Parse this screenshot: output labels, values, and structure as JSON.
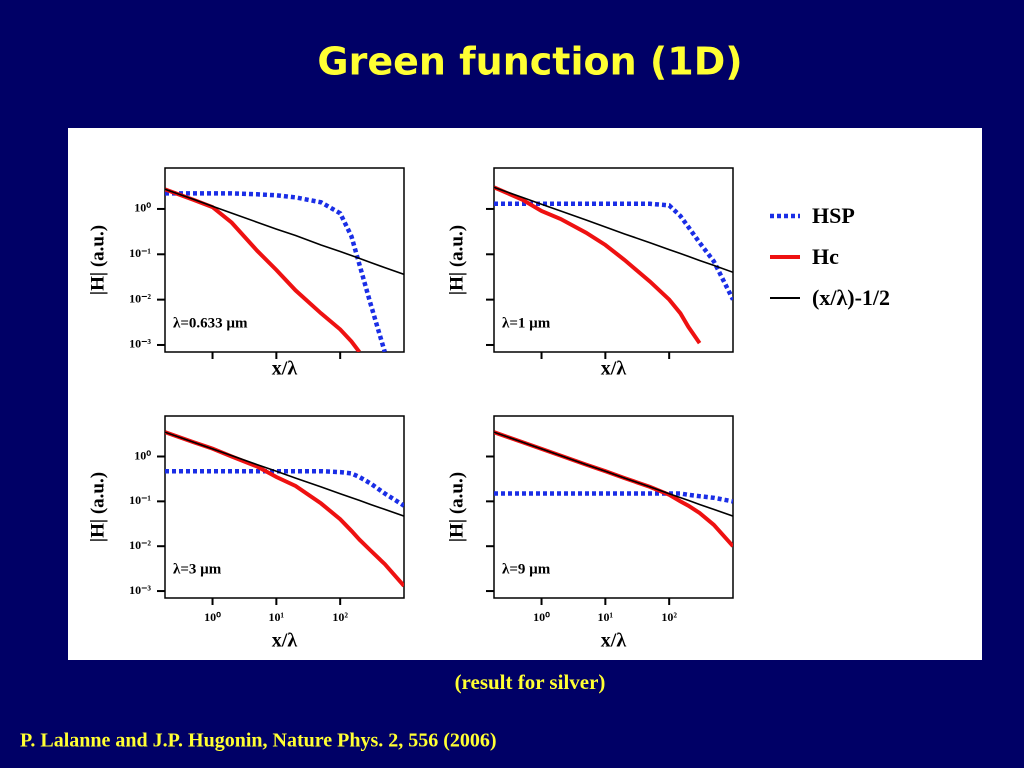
{
  "title": "Green function (1D)",
  "caption": "(result for silver)",
  "reference": "P. Lalanne and J.P. Hugonin, Nature Phys. 2, 556 (2006)",
  "chart_data": [
    {
      "type": "line",
      "annotation": "λ=0.633 µm",
      "xlabel": "x/λ",
      "ylabel": "|H| (a.u.)",
      "log_x": true,
      "log_y": true,
      "legend": "right",
      "xlim": [
        0.18,
        1000
      ],
      "ylim": [
        0.0007,
        8
      ],
      "xticks": [
        1,
        10,
        100
      ],
      "xtick_labels": false,
      "yticks": [
        {
          "value": 1,
          "label": "10⁰"
        },
        {
          "value": 0.1,
          "label": "10⁻¹"
        },
        {
          "value": 0.01,
          "label": "10⁻²"
        },
        {
          "value": 0.001,
          "label": "10⁻³"
        }
      ],
      "ytick_labels": true,
      "x": [
        0.18,
        0.5,
        1,
        2,
        5,
        10,
        20,
        50,
        100,
        150,
        200,
        300,
        500,
        1000
      ],
      "series": [
        {
          "name": "HSP",
          "color": "#1a2ee6",
          "style": "dotted",
          "values": [
            2.2,
            2.2,
            2.2,
            2.2,
            2.1,
            2.0,
            1.8,
            1.4,
            0.8,
            0.25,
            0.06,
            0.008,
            0.0007,
            null
          ]
        },
        {
          "name": "Hc",
          "color": "#ee1111",
          "style": "solid",
          "values": [
            2.7,
            1.6,
            1.1,
            0.5,
            0.12,
            0.045,
            0.016,
            0.005,
            0.0022,
            0.0012,
            0.0007,
            null,
            null,
            null
          ]
        },
        {
          "name": "(x/λ)-1/2",
          "color": "#000000",
          "style": "thin",
          "values": [
            2.71,
            1.63,
            1.15,
            0.81,
            0.51,
            0.36,
            0.26,
            0.16,
            0.115,
            0.094,
            0.081,
            0.066,
            0.051,
            0.036
          ]
        }
      ]
    },
    {
      "type": "line",
      "annotation": "λ=1 µm",
      "ylabel": "|H| (a.u.)",
      "xlabel": "x/λ",
      "log_x": true,
      "log_y": true,
      "xlim": [
        0.18,
        1000
      ],
      "ylim": [
        0.0007,
        8
      ],
      "xticks": [
        1,
        10,
        100
      ],
      "xtick_labels": false,
      "yticks": [
        1,
        0.1,
        0.01,
        0.001
      ],
      "ytick_labels": false,
      "x": [
        0.18,
        0.5,
        1,
        2,
        5,
        10,
        20,
        50,
        100,
        150,
        200,
        300,
        500,
        1000
      ],
      "series": [
        {
          "color": "#1a2ee6",
          "style": "dotted",
          "values": [
            1.3,
            1.3,
            1.3,
            1.3,
            1.3,
            1.3,
            1.3,
            1.3,
            1.2,
            0.7,
            0.4,
            0.18,
            0.07,
            0.01
          ]
        },
        {
          "color": "#ee1111",
          "style": "solid",
          "values": [
            3.0,
            1.6,
            0.9,
            0.6,
            0.3,
            0.16,
            0.075,
            0.025,
            0.01,
            0.005,
            0.0025,
            0.0011,
            null,
            null
          ]
        },
        {
          "color": "#000000",
          "style": "thin",
          "values": [
            2.99,
            1.8,
            1.27,
            0.9,
            0.57,
            0.4,
            0.28,
            0.18,
            0.127,
            0.104,
            0.09,
            0.073,
            0.057,
            0.04
          ]
        }
      ]
    },
    {
      "type": "line",
      "annotation": "λ=3 µm",
      "ylabel": "|H| (a.u.)",
      "xlabel": "x/λ",
      "log_x": true,
      "log_y": true,
      "xlim": [
        0.18,
        1000
      ],
      "ylim": [
        0.0007,
        8
      ],
      "xticks": [
        {
          "value": 1,
          "label": "10⁰"
        },
        {
          "value": 10,
          "label": "10¹"
        },
        {
          "value": 100,
          "label": "10²"
        }
      ],
      "xtick_labels": true,
      "yticks": [
        {
          "value": 1,
          "label": "10⁰"
        },
        {
          "value": 0.1,
          "label": "10⁻¹"
        },
        {
          "value": 0.01,
          "label": "10⁻²"
        },
        {
          "value": 0.001,
          "label": "10⁻³"
        }
      ],
      "ytick_labels": true,
      "x": [
        0.18,
        0.5,
        1,
        2,
        5,
        10,
        20,
        50,
        100,
        150,
        200,
        300,
        500,
        1000
      ],
      "series": [
        {
          "color": "#1a2ee6",
          "style": "dotted",
          "values": [
            0.47,
            0.47,
            0.47,
            0.47,
            0.47,
            0.47,
            0.47,
            0.47,
            0.45,
            0.42,
            0.35,
            0.25,
            0.15,
            0.08
          ]
        },
        {
          "color": "#ee1111",
          "style": "solid",
          "values": [
            3.5,
            2.1,
            1.5,
            1.0,
            0.6,
            0.35,
            0.22,
            0.09,
            0.04,
            0.022,
            0.014,
            0.008,
            0.004,
            0.0013
          ]
        },
        {
          "color": "#000000",
          "style": "thin",
          "values": [
            3.49,
            2.09,
            1.48,
            1.05,
            0.66,
            0.47,
            0.33,
            0.21,
            0.148,
            0.121,
            0.105,
            0.085,
            0.066,
            0.047
          ]
        }
      ]
    },
    {
      "type": "line",
      "annotation": "λ=9 µm",
      "ylabel": "|H| (a.u.)",
      "xlabel": "x/λ",
      "log_x": true,
      "log_y": true,
      "xlim": [
        0.18,
        1000
      ],
      "ylim": [
        0.0007,
        8
      ],
      "xticks": [
        {
          "value": 1,
          "label": "10⁰"
        },
        {
          "value": 10,
          "label": "10¹"
        },
        {
          "value": 100,
          "label": "10²"
        }
      ],
      "xtick_labels": true,
      "yticks": [
        1,
        0.1,
        0.01,
        0.001
      ],
      "ytick_labels": false,
      "x": [
        0.18,
        0.5,
        1,
        2,
        5,
        10,
        20,
        50,
        100,
        150,
        200,
        300,
        500,
        1000
      ],
      "series": [
        {
          "color": "#1a2ee6",
          "style": "dotted",
          "values": [
            0.15,
            0.15,
            0.15,
            0.15,
            0.15,
            0.15,
            0.15,
            0.15,
            0.15,
            0.15,
            0.14,
            0.13,
            0.12,
            0.1
          ]
        },
        {
          "color": "#ee1111",
          "style": "solid",
          "values": [
            3.49,
            2.09,
            1.48,
            1.05,
            0.66,
            0.47,
            0.33,
            0.21,
            0.14,
            0.1,
            0.08,
            0.055,
            0.03,
            0.01
          ]
        },
        {
          "color": "#000000",
          "style": "thin",
          "values": [
            3.49,
            2.09,
            1.48,
            1.05,
            0.66,
            0.47,
            0.33,
            0.21,
            0.148,
            0.121,
            0.105,
            0.085,
            0.066,
            0.047
          ]
        }
      ]
    }
  ]
}
